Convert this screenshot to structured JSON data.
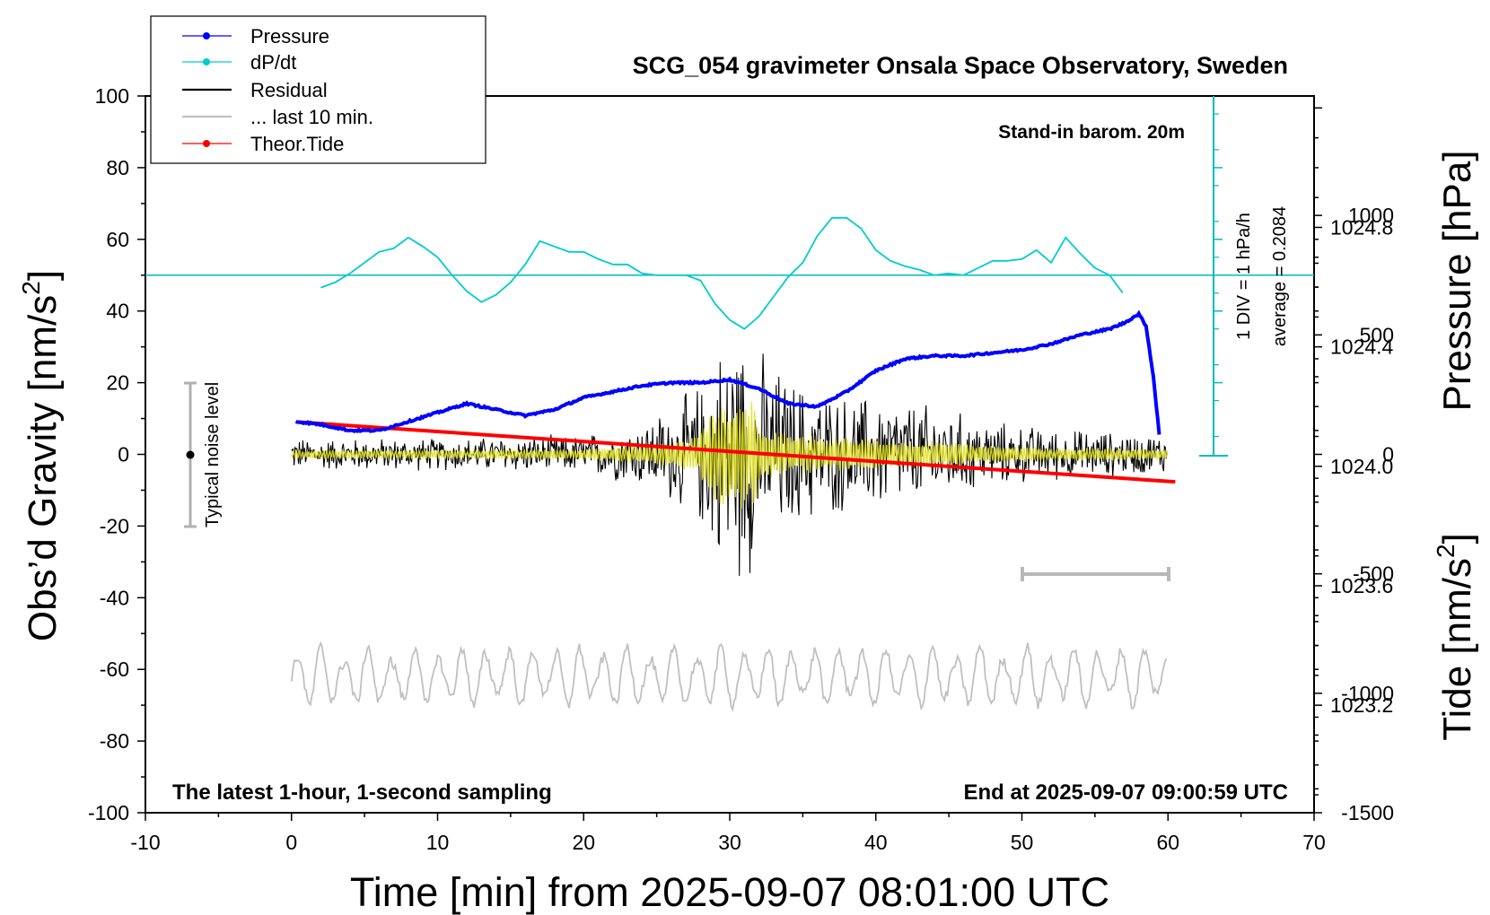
{
  "chart_data": {
    "type": "line",
    "title": "SCG_054 gravimeter Onsala Space Observatory, Sweden",
    "xlabel": "Time [min] from 2025-09-07 08:01:00 UTC",
    "ylabel": "Obs’d Gravity [nm/s",
    "ylabel_sup": "2",
    "ylabel_end": "]",
    "y2label_pressure": "Pressure [hPa]",
    "y2label_tide": "Tide [nm/s",
    "y2label_tide_sup": "2",
    "y2label_tide_end": "]",
    "xlim": [
      -10,
      70
    ],
    "ylim": [
      -100,
      100
    ],
    "xticks": [
      -10,
      0,
      10,
      20,
      30,
      40,
      50,
      60,
      70
    ],
    "yticks": [
      -100,
      -80,
      -60,
      -40,
      -20,
      0,
      20,
      40,
      60,
      80,
      100
    ],
    "pressure_axis": {
      "ticks": [
        "1023.2",
        "1023.6",
        "1024.0",
        "1024.4",
        "1024.8"
      ],
      "values": [
        1023.2,
        1023.6,
        1024.0,
        1024.4,
        1024.8
      ],
      "range": [
        1022.84,
        1025.24
      ]
    },
    "tide_axis": {
      "ticks": [
        "-1500",
        "-1000",
        "-500",
        "0",
        "500",
        "1000"
      ],
      "values": [
        -1500,
        -1000,
        -500,
        0,
        500,
        1000
      ],
      "range": [
        -1500,
        1500
      ]
    },
    "annotations": {
      "stand_in": "Stand-in barom. 20m",
      "div_label": "1 DIV = 1 hPa/h",
      "average_label": "average = 0.2084",
      "noise_label": "Typical noise level",
      "footer_left": "The latest 1-hour, 1-second sampling",
      "footer_right": "End at 2025-09-07 09:00:59 UTC"
    },
    "legend": {
      "position": "top-left",
      "entries": [
        {
          "name": "Pressure",
          "color": "#0000ff",
          "marker": true
        },
        {
          "name": "dP/dt",
          "color": "#00cccc",
          "marker": true
        },
        {
          "name": "Residual",
          "color": "#000000",
          "marker": false
        },
        {
          "name": "... last 10 min.",
          "color": "#c0c0c0",
          "marker": false
        },
        {
          "name": "Theor.Tide",
          "color": "#ff0000",
          "marker": true
        }
      ]
    },
    "series": [
      {
        "name": "Pressure",
        "color": "#0000ff",
        "axis": "pressure_hPa",
        "x": [
          0.3,
          2,
          4,
          6,
          8,
          10,
          12,
          14,
          16,
          18,
          20,
          22,
          24,
          26,
          28,
          30,
          32,
          34,
          36,
          38,
          40,
          42,
          44,
          46,
          48,
          50,
          52,
          54,
          56,
          57,
          58,
          58.5,
          59,
          59.5
        ],
        "values": [
          1024.15,
          1024.14,
          1024.12,
          1024.12,
          1024.15,
          1024.18,
          1024.21,
          1024.19,
          1024.17,
          1024.19,
          1024.23,
          1024.25,
          1024.27,
          1024.28,
          1024.28,
          1024.29,
          1024.26,
          1024.21,
          1024.2,
          1024.25,
          1024.32,
          1024.36,
          1024.37,
          1024.37,
          1024.38,
          1024.39,
          1024.41,
          1024.44,
          1024.46,
          1024.48,
          1024.51,
          1024.47,
          1024.3,
          1024.06
        ]
      },
      {
        "name": "dP/dt",
        "color": "#00cccc",
        "axis": "div_hPa_per_h",
        "x": [
          2,
          3,
          4,
          5,
          6,
          7,
          8,
          9,
          10,
          11,
          12,
          13,
          14,
          15,
          16,
          17,
          18,
          19,
          20,
          21,
          22,
          23,
          24,
          25,
          26,
          27,
          28,
          29,
          30,
          31,
          32,
          33,
          34,
          35,
          36,
          37,
          38,
          39,
          40,
          41,
          42,
          43,
          44,
          45,
          46,
          47,
          48,
          49,
          50,
          51,
          52,
          53,
          54,
          55,
          56,
          57
        ],
        "values": [
          -0.35,
          -0.2,
          0.05,
          0.35,
          0.65,
          0.75,
          1.05,
          0.8,
          0.5,
          0.0,
          -0.45,
          -0.75,
          -0.55,
          -0.2,
          0.3,
          0.95,
          0.8,
          0.65,
          0.65,
          0.45,
          0.3,
          0.3,
          0.05,
          0.0,
          0.0,
          0.0,
          -0.15,
          -0.8,
          -1.25,
          -1.5,
          -1.15,
          -0.6,
          -0.05,
          0.35,
          1.1,
          1.6,
          1.6,
          1.3,
          0.7,
          0.4,
          0.25,
          0.15,
          0.0,
          0.05,
          0.0,
          0.2,
          0.4,
          0.4,
          0.45,
          0.7,
          0.35,
          1.05,
          0.6,
          0.2,
          0.0,
          -0.55
        ]
      },
      {
        "name": "Residual",
        "color": "#000000",
        "axis": "gravity_nm_s2",
        "envelope_minutes": [
          0,
          10,
          20,
          24,
          26,
          28,
          29,
          30,
          31,
          32,
          34,
          36,
          38,
          40,
          44,
          48,
          52,
          56,
          60
        ],
        "envelope_amplitude": [
          5,
          5,
          6,
          10,
          15,
          22,
          32,
          38,
          40,
          32,
          24,
          20,
          18,
          18,
          15,
          10,
          8,
          7,
          6
        ]
      },
      {
        "name": "... last 10 min.",
        "color": "#c0c0c0",
        "axis": "gravity_nm_s2",
        "offset": -62,
        "x_range": [
          0,
          60
        ],
        "amplitude": 8
      },
      {
        "name": "Theor.Tide",
        "color": "#ff0000",
        "axis": "tide_nm_s2",
        "x": [
          0.5,
          60.5
        ],
        "values": [
          135,
          -115
        ]
      }
    ]
  }
}
